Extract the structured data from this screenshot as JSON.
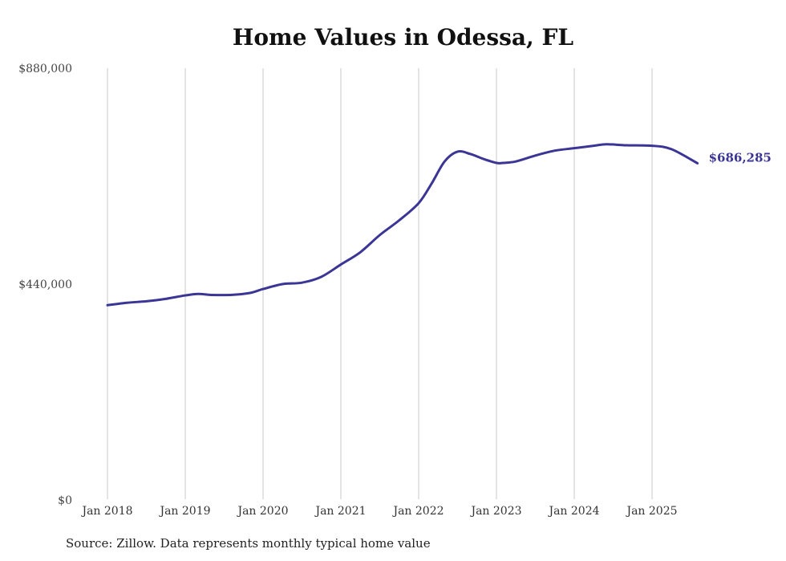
{
  "chart_data": {
    "type": "line",
    "title": "Home Values in Odessa, FL",
    "source_note": "Source: Zillow. Data represents monthly typical home value",
    "ylim": [
      0,
      880000
    ],
    "y_ticks": [
      {
        "value": 0,
        "label": "$0"
      },
      {
        "value": 440000,
        "label": "$440,000"
      },
      {
        "value": 880000,
        "label": "$880,000"
      }
    ],
    "x_ticks": [
      {
        "value": "2018-01",
        "label": "Jan 2018"
      },
      {
        "value": "2019-01",
        "label": "Jan 2019"
      },
      {
        "value": "2020-01",
        "label": "Jan 2020"
      },
      {
        "value": "2021-01",
        "label": "Jan 2021"
      },
      {
        "value": "2022-01",
        "label": "Jan 2022"
      },
      {
        "value": "2023-01",
        "label": "Jan 2023"
      },
      {
        "value": "2024-01",
        "label": "Jan 2024"
      },
      {
        "value": "2025-01",
        "label": "Jan 2025"
      }
    ],
    "grid": {
      "vertical": true,
      "horizontal": false
    },
    "line_color": "#3b3596",
    "end_label": "$686,285",
    "series": [
      {
        "x": [
          "2018-01",
          "2018-04",
          "2018-07",
          "2018-10",
          "2019-01",
          "2019-03",
          "2019-05",
          "2019-08",
          "2019-11",
          "2020-01",
          "2020-04",
          "2020-07",
          "2020-10",
          "2021-01",
          "2021-04",
          "2021-07",
          "2021-10",
          "2022-01",
          "2022-03",
          "2022-05",
          "2022-07",
          "2022-09",
          "2022-11",
          "2023-01",
          "2023-02",
          "2023-04",
          "2023-07",
          "2023-10",
          "2024-01",
          "2024-04",
          "2024-06",
          "2024-09",
          "2025-01",
          "2025-04",
          "2025-08"
        ],
        "values": [
          397000,
          402000,
          405000,
          410000,
          417000,
          420000,
          418000,
          418000,
          422000,
          430000,
          440000,
          443000,
          455000,
          480000,
          505000,
          540000,
          570000,
          605000,
          645000,
          690000,
          710000,
          705000,
          695000,
          687000,
          687000,
          690000,
          702000,
          712000,
          717000,
          722000,
          725000,
          723000,
          722000,
          715000,
          686285
        ]
      }
    ]
  }
}
